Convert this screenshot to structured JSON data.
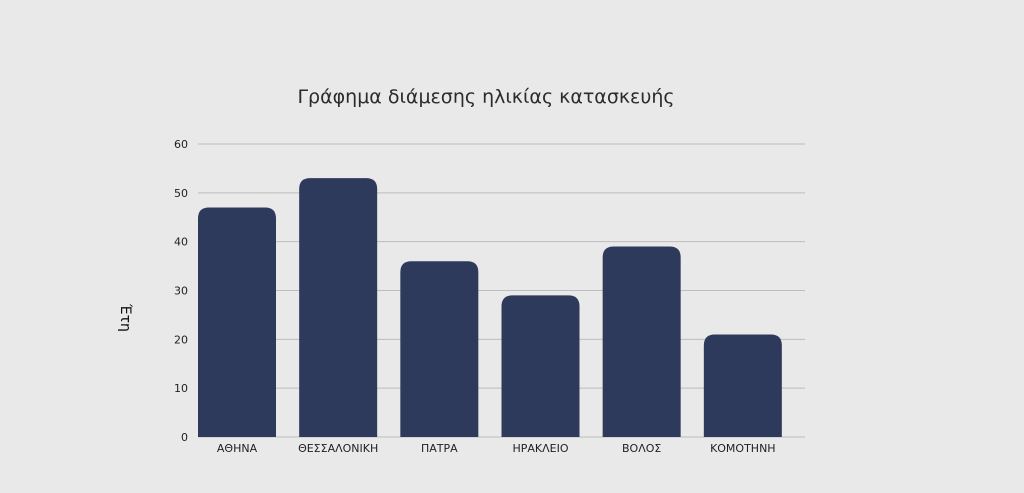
{
  "chart_data": {
    "type": "bar",
    "title": "Γράφημα διάμεσης ηλικίας κατασκευής",
    "xlabel": "",
    "ylabel": "Έτη",
    "categories": [
      "ΑΘΗΝΑ",
      "ΘΕΣΣΑΛΟΝΙΚΗ",
      "ΠΑΤΡΑ",
      "ΗΡΑΚΛΕΙΟ",
      "ΒΟΛΟΣ",
      "ΚΟΜΟΤΗΝΗ"
    ],
    "values": [
      47,
      53,
      36,
      29,
      39,
      21
    ],
    "ylim": [
      0,
      60
    ],
    "yticks": [
      0,
      10,
      20,
      30,
      40,
      50,
      60
    ],
    "grid": true,
    "legend": "none",
    "bar_color": "#2e3a5c",
    "background": "#e9e9e9"
  }
}
